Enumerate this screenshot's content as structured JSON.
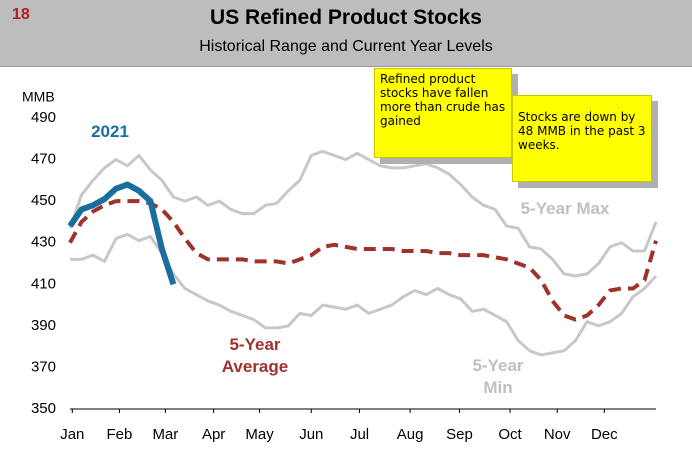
{
  "page_number": "18",
  "chart_data": {
    "type": "line",
    "title": "US Refined Product Stocks",
    "subtitle": "Historical Range and Current Year Levels",
    "y_label": "MMB",
    "x": [
      1,
      2,
      3,
      4,
      5,
      6,
      7,
      8,
      9,
      10,
      11,
      12,
      13,
      14,
      15,
      16,
      17,
      18,
      19,
      20,
      21,
      22,
      23,
      24,
      25,
      26,
      27,
      28,
      29,
      30,
      31,
      32,
      33,
      34,
      35,
      36,
      37,
      38,
      39,
      40,
      41,
      42,
      43,
      44,
      45,
      46,
      47,
      48,
      49,
      50,
      51,
      52
    ],
    "xlim": [
      1,
      52
    ],
    "xticks": [
      {
        "value": 1.2,
        "label": "Jan"
      },
      {
        "value": 5.3,
        "label": "Feb"
      },
      {
        "value": 9.3,
        "label": "Mar"
      },
      {
        "value": 13.5,
        "label": "Apr"
      },
      {
        "value": 17.5,
        "label": "May"
      },
      {
        "value": 22,
        "label": "Jun"
      },
      {
        "value": 26.2,
        "label": "Jul"
      },
      {
        "value": 30.6,
        "label": "Aug"
      },
      {
        "value": 34.9,
        "label": "Sep"
      },
      {
        "value": 39.3,
        "label": "Oct"
      },
      {
        "value": 43.4,
        "label": "Nov"
      },
      {
        "value": 47.5,
        "label": "Dec"
      }
    ],
    "ylim": [
      350,
      490
    ],
    "yticks": [
      350,
      370,
      390,
      410,
      430,
      450,
      470,
      490
    ],
    "series": [
      {
        "name": "5-Year Max",
        "color": "#c8c8c8",
        "values": [
          437,
          453,
          460,
          466,
          470,
          467,
          472,
          465,
          460,
          452,
          450,
          452,
          448,
          450,
          446,
          444,
          444,
          448,
          449,
          455,
          460,
          472,
          474,
          472,
          470,
          473,
          470,
          467,
          466,
          466,
          467,
          468,
          466,
          463,
          458,
          452,
          448,
          446,
          438,
          437,
          428,
          427,
          422,
          415,
          414,
          415,
          420,
          428,
          430,
          426,
          426,
          440
        ]
      },
      {
        "name": "5-Year Min",
        "color": "#c8c8c8",
        "values": [
          422,
          422,
          424,
          421,
          432,
          434,
          431,
          433,
          425,
          415,
          408,
          405,
          402,
          400,
          397,
          395,
          393,
          389,
          389,
          390,
          396,
          395,
          400,
          399,
          398,
          400,
          396,
          398,
          400,
          404,
          407,
          405,
          408,
          405,
          403,
          397,
          398,
          395,
          392,
          383,
          378,
          376,
          377,
          378,
          383,
          392,
          390,
          392,
          396,
          404,
          408,
          414
        ]
      },
      {
        "name": "5-Year Average",
        "color": "#a0322d",
        "dashed": true,
        "values": [
          430,
          440,
          445,
          448,
          450,
          450,
          450,
          449,
          446,
          440,
          432,
          425,
          422,
          422,
          422,
          422,
          421,
          421,
          421,
          420,
          422,
          424,
          428,
          429,
          428,
          427,
          427,
          427,
          427,
          426,
          426,
          426,
          425,
          425,
          424,
          424,
          424,
          423,
          422,
          420,
          418,
          412,
          402,
          395,
          393,
          395,
          400,
          407,
          408,
          408,
          412,
          431
        ]
      },
      {
        "name": "2021",
        "color": "#1a6e9e",
        "values": [
          438,
          446,
          448,
          451,
          456,
          458,
          455,
          450,
          427,
          410,
          null,
          null,
          null,
          null,
          null,
          null,
          null,
          null,
          null,
          null,
          null,
          null,
          null,
          null,
          null,
          null,
          null,
          null,
          null,
          null,
          null,
          null,
          null,
          null,
          null,
          null,
          null,
          null,
          null,
          null,
          null,
          null,
          null,
          null,
          null,
          null,
          null,
          null,
          null,
          null,
          null,
          null
        ]
      }
    ],
    "annotations": [
      "Refined product stocks have fallen more than crude has gained",
      "Stocks are down by 48 MMB in the past 3 weeks."
    ]
  }
}
